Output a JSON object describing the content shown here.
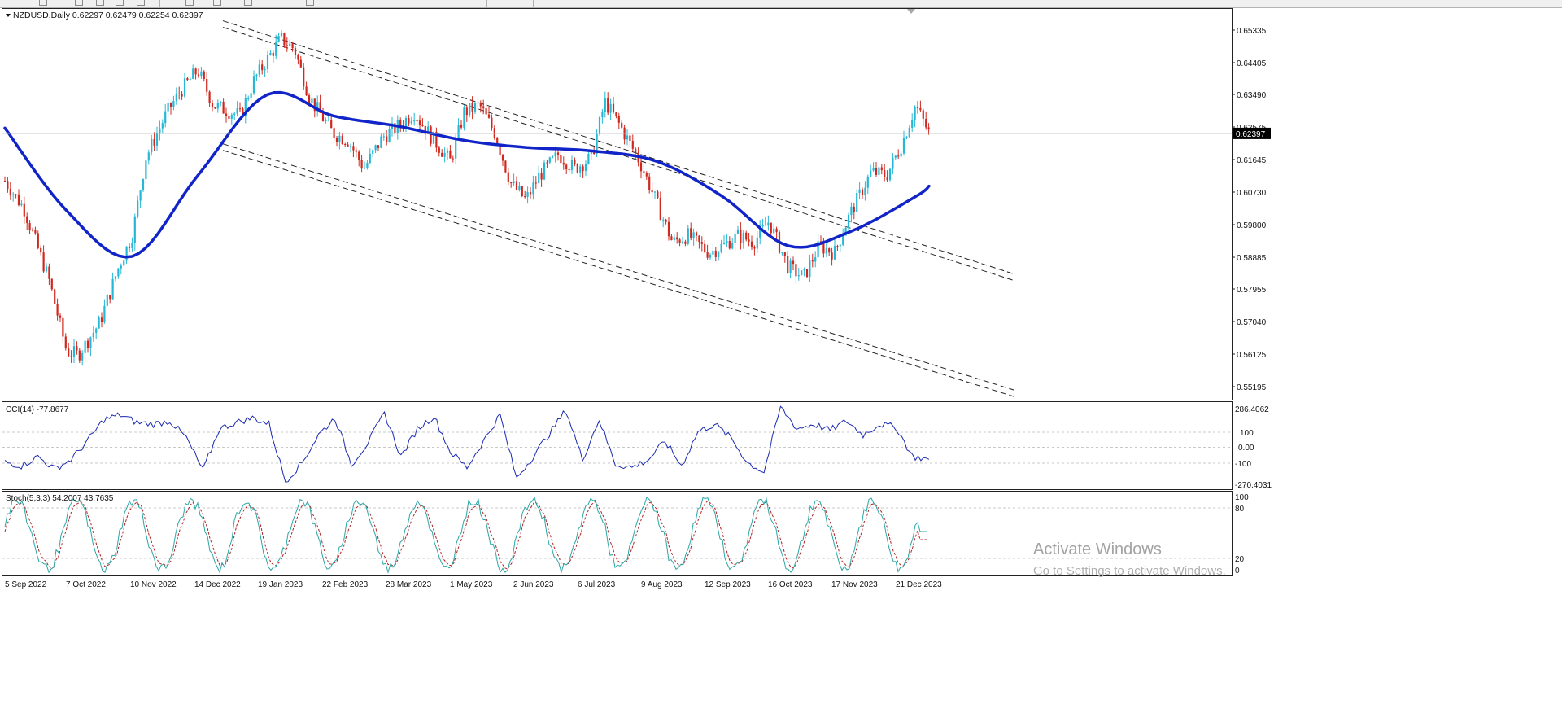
{
  "symbol_header": {
    "symbol": "NZDUSD",
    "timeframe": "Daily",
    "open": "0.62297",
    "high": "0.62479",
    "low": "0.62254",
    "close": "0.62397",
    "caption": "NZDUSD,Daily  0.62297 0.62479 0.62254 0.62397"
  },
  "price_scale": {
    "labels": [
      "0.65335",
      "0.64405",
      "0.63490",
      "0.62575",
      "0.61645",
      "0.60730",
      "0.59800",
      "0.58885",
      "0.57955",
      "0.57040",
      "0.56125",
      "0.55195"
    ],
    "current_price": "0.62397"
  },
  "cci": {
    "caption": "CCI(14) -77.8677",
    "period": 14,
    "value": -77.8677,
    "labels": [
      "286.4062",
      "100",
      "0.00",
      "-100",
      "-270.4031"
    ]
  },
  "stoch": {
    "caption": "Stoch(5,3,3) 54.2007 43.7635",
    "params": "5,3,3",
    "main": 54.2007,
    "signal": 43.7635,
    "labels": [
      "100",
      "80",
      "20",
      "0"
    ]
  },
  "time_axis": {
    "labels": [
      "5 Sep 2022",
      "7 Oct 2022",
      "10 Nov 2022",
      "14 Dec 2022",
      "19 Jan 2023",
      "22 Feb 2023",
      "28 Mar 2023",
      "1 May 2023",
      "2 Jun 2023",
      "6 Jul 2023",
      "9 Aug 2023",
      "12 Sep 2023",
      "16 Oct 2023",
      "17 Nov 2023",
      "21 Dec 2023"
    ]
  },
  "watermark": {
    "title": "Activate Windows",
    "subtitle": "Go to Settings to activate Windows."
  },
  "colors": {
    "bull": "#26b7d6",
    "bear": "#d0281f",
    "ma": "#1024c8",
    "indicator": "#1a2ab0",
    "stoch_main": "#2aa6a6",
    "stoch_signal": "#b22222",
    "channel": "#222222",
    "price_tag_bg": "#000000"
  },
  "chart_data": {
    "type": "candlestick",
    "symbol": "NZDUSD",
    "timeframe": "Daily",
    "ylim": [
      0.5505,
      0.6585
    ],
    "x": [
      "2022-09-05",
      "2022-09-15",
      "2022-09-28",
      "2022-10-07",
      "2022-10-13",
      "2022-10-24",
      "2022-11-03",
      "2022-11-10",
      "2022-11-17",
      "2022-11-28",
      "2022-12-05",
      "2022-12-14",
      "2022-12-22",
      "2023-01-05",
      "2023-01-12",
      "2023-01-19",
      "2023-01-26",
      "2023-02-02",
      "2023-02-10",
      "2023-02-22",
      "2023-03-02",
      "2023-03-10",
      "2023-03-20",
      "2023-03-28",
      "2023-04-05",
      "2023-04-14",
      "2023-04-24",
      "2023-05-01",
      "2023-05-09",
      "2023-05-17",
      "2023-05-25",
      "2023-06-02",
      "2023-06-09",
      "2023-06-19",
      "2023-06-27",
      "2023-07-06",
      "2023-07-13",
      "2023-07-21",
      "2023-07-31",
      "2023-08-09",
      "2023-08-17",
      "2023-08-25",
      "2023-09-05",
      "2023-09-12",
      "2023-09-20",
      "2023-09-28",
      "2023-10-06",
      "2023-10-16",
      "2023-10-24",
      "2023-11-01",
      "2023-11-09",
      "2023-11-17",
      "2023-11-28",
      "2023-12-06",
      "2023-12-14",
      "2023-12-21",
      "2023-12-28"
    ],
    "close": [
      0.6105,
      0.6025,
      0.582,
      0.562,
      0.561,
      0.57,
      0.586,
      0.595,
      0.617,
      0.63,
      0.636,
      0.642,
      0.632,
      0.629,
      0.639,
      0.645,
      0.651,
      0.648,
      0.634,
      0.624,
      0.622,
      0.614,
      0.623,
      0.626,
      0.63,
      0.623,
      0.616,
      0.63,
      0.632,
      0.624,
      0.61,
      0.605,
      0.612,
      0.618,
      0.614,
      0.617,
      0.633,
      0.626,
      0.616,
      0.604,
      0.593,
      0.595,
      0.59,
      0.592,
      0.595,
      0.593,
      0.599,
      0.586,
      0.583,
      0.592,
      0.59,
      0.601,
      0.613,
      0.612,
      0.621,
      0.632,
      0.624
    ],
    "ma_x": [
      "2022-09-05",
      "2022-10-07",
      "2022-11-10",
      "2022-12-14",
      "2023-01-19",
      "2023-02-22",
      "2023-03-28",
      "2023-05-01",
      "2023-06-02",
      "2023-07-06",
      "2023-08-09",
      "2023-09-12",
      "2023-10-16",
      "2023-11-17",
      "2023-12-21",
      "2023-12-28"
    ],
    "ma": [
      0.6255,
      0.602,
      0.589,
      0.612,
      0.635,
      0.629,
      0.626,
      0.622,
      0.62,
      0.619,
      0.616,
      0.606,
      0.592,
      0.596,
      0.606,
      0.609
    ],
    "channel_upper": {
      "x": [
        "2022-12-27",
        "2024-02-10"
      ],
      "y": [
        0.656,
        0.584
      ]
    },
    "channel_lower": {
      "x": [
        "2022-12-27",
        "2024-02-10"
      ],
      "y": [
        0.621,
        0.551
      ]
    },
    "cci_values": [
      -95,
      -120,
      -60,
      -140,
      -80,
      40,
      180,
      210,
      160,
      150,
      170,
      60,
      -150,
      120,
      160,
      190,
      150,
      -220,
      -100,
      80,
      190,
      -110,
      30,
      220,
      -60,
      120,
      200,
      -30,
      -130,
      40,
      210,
      -200,
      -60,
      90,
      240,
      -80,
      180,
      -110,
      -130,
      -80,
      40,
      -120,
      100,
      150,
      60,
      -100,
      -160,
      260,
      120,
      150,
      110,
      170,
      80,
      150,
      130,
      -60,
      -78
    ]
  }
}
